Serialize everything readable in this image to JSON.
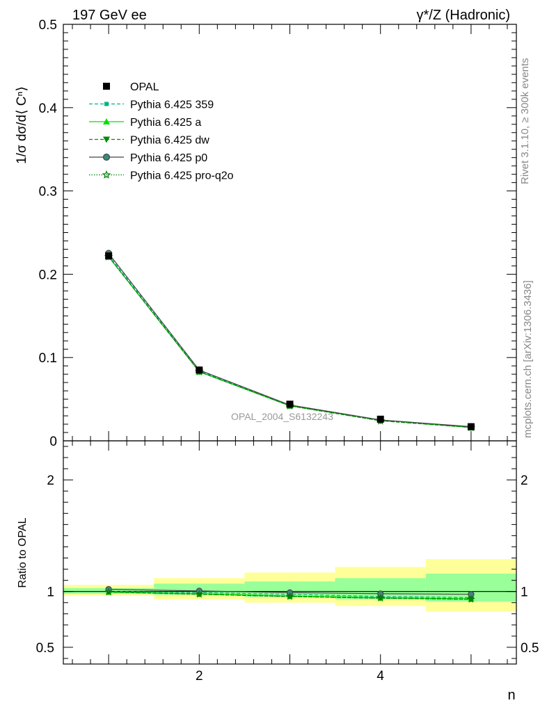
{
  "header": {
    "left": "197 GeV ee",
    "right": "γ*/Z (Hadronic)"
  },
  "side_text": {
    "rivet": "Rivet 3.1.10, ≥ 300k events",
    "mcplots": "mcplots.cern.ch [arXiv:1306.3436]"
  },
  "analysis_id": "OPAL_2004_S6132243",
  "legend": [
    {
      "label": "OPAL",
      "color": "#000000",
      "marker": "square",
      "line": "none"
    },
    {
      "label": "Pythia 6.425 359",
      "color": "#00b386",
      "marker": "small-square",
      "line": "dashed"
    },
    {
      "label": "Pythia 6.425 a",
      "color": "#00e000",
      "marker": "triangle-up",
      "line": "solid"
    },
    {
      "label": "Pythia 6.425 dw",
      "color": "#008c00",
      "marker": "triangle-down",
      "line": "dashed"
    },
    {
      "label": "Pythia 6.425 p0",
      "color": "#444444",
      "marker": "open-circle",
      "line": "solid"
    },
    {
      "label": "Pythia 6.425 pro-q2o",
      "color": "#008000",
      "marker": "open-star",
      "line": "dotted"
    }
  ],
  "chart_data": [
    {
      "type": "line",
      "panel": "main",
      "ylabel": "1/σ dσ/d⟨ Cⁿ⟩",
      "xlabel": "n",
      "xlim": [
        0.5,
        5.5
      ],
      "ylim": [
        0,
        0.5
      ],
      "yticks": [
        "0",
        "0.1",
        "0.2",
        "0.3",
        "0.4",
        "0.5"
      ],
      "x": [
        1,
        2,
        3,
        4,
        5
      ],
      "series": [
        {
          "name": "OPAL",
          "values": [
            0.222,
            0.085,
            0.044,
            0.026,
            0.017
          ]
        },
        {
          "name": "Pythia 6.425 359",
          "values": [
            0.223,
            0.084,
            0.043,
            0.025,
            0.016
          ]
        },
        {
          "name": "Pythia 6.425 a",
          "values": [
            0.221,
            0.083,
            0.042,
            0.025,
            0.016
          ]
        },
        {
          "name": "Pythia 6.425 dw",
          "values": [
            0.221,
            0.083,
            0.042,
            0.024,
            0.016
          ]
        },
        {
          "name": "Pythia 6.425 p0",
          "values": [
            0.225,
            0.085,
            0.043,
            0.025,
            0.017
          ]
        },
        {
          "name": "Pythia 6.425 pro-q2o",
          "values": [
            0.221,
            0.083,
            0.042,
            0.024,
            0.016
          ]
        }
      ]
    },
    {
      "type": "line",
      "panel": "ratio",
      "ylabel": "Ratio to OPAL",
      "xlabel": "n",
      "xlim": [
        0.5,
        5.5
      ],
      "ylim": [
        0.35,
        2.35
      ],
      "yticks": [
        "0.5",
        "1",
        "2"
      ],
      "xticks": [
        "2",
        "4"
      ],
      "x": [
        1,
        2,
        3,
        4,
        5
      ],
      "bin_edges": [
        [
          0.5,
          1.5
        ],
        [
          1.5,
          2.5
        ],
        [
          2.5,
          3.5
        ],
        [
          3.5,
          4.5
        ],
        [
          4.5,
          5.5
        ]
      ],
      "band_inner": [
        [
          0.98,
          1.03
        ],
        [
          0.97,
          1.07
        ],
        [
          0.95,
          1.09
        ],
        [
          0.93,
          1.12
        ],
        [
          0.91,
          1.16
        ]
      ],
      "band_outer": [
        [
          0.96,
          1.06
        ],
        [
          0.93,
          1.12
        ],
        [
          0.9,
          1.17
        ],
        [
          0.87,
          1.22
        ],
        [
          0.82,
          1.29
        ]
      ],
      "series": [
        {
          "name": "Pythia 6.425 359",
          "values": [
            1.0,
            0.99,
            0.975,
            0.955,
            0.945
          ]
        },
        {
          "name": "Pythia 6.425 a",
          "values": [
            0.995,
            0.98,
            0.96,
            0.945,
            0.935
          ]
        },
        {
          "name": "Pythia 6.425 dw",
          "values": [
            0.995,
            0.975,
            0.955,
            0.94,
            0.93
          ]
        },
        {
          "name": "Pythia 6.425 p0",
          "values": [
            1.02,
            1.005,
            0.99,
            0.98,
            0.975
          ]
        },
        {
          "name": "Pythia 6.425 pro-q2o",
          "values": [
            0.995,
            0.975,
            0.955,
            0.94,
            0.93
          ]
        }
      ]
    }
  ]
}
